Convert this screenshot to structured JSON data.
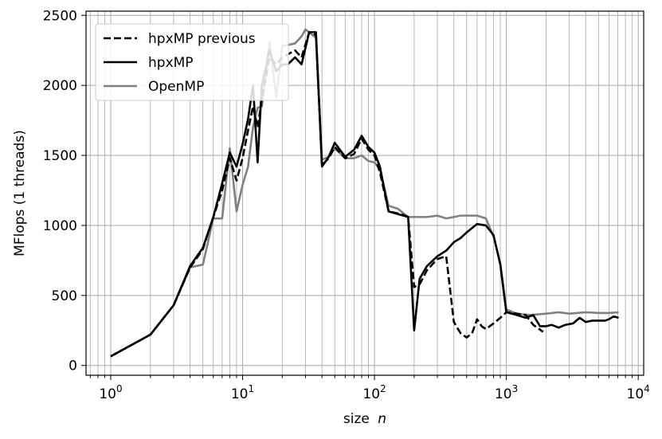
{
  "chart_data": {
    "type": "line",
    "xscale": "log",
    "xlim": [
      0.65,
      11000
    ],
    "ylim": [
      -70,
      2530
    ],
    "xlabel": "size",
    "xlabel_var": "n",
    "ylabel": "MFlops (1 threads)",
    "grid": true,
    "legend_position": "top-left",
    "x_major_ticks": [
      {
        "base": "10",
        "exp": "0",
        "value": 1
      },
      {
        "base": "10",
        "exp": "1",
        "value": 10
      },
      {
        "base": "10",
        "exp": "2",
        "value": 100
      },
      {
        "base": "10",
        "exp": "3",
        "value": 1000
      },
      {
        "base": "10",
        "exp": "4",
        "value": 10000
      }
    ],
    "y_ticks": [
      {
        "label": "0",
        "value": 0
      },
      {
        "label": "500",
        "value": 500
      },
      {
        "label": "1000",
        "value": 1000
      },
      {
        "label": "1500",
        "value": 1500
      },
      {
        "label": "2000",
        "value": 2000
      },
      {
        "label": "2500",
        "value": 2500
      }
    ],
    "series": [
      {
        "name": "hpxMP previous",
        "color": "#000000",
        "style": "dashed",
        "points": [
          [
            1,
            65
          ],
          [
            2,
            220
          ],
          [
            3,
            430
          ],
          [
            4,
            700
          ],
          [
            5,
            830
          ],
          [
            6,
            1060
          ],
          [
            7,
            1250
          ],
          [
            8,
            1480
          ],
          [
            9,
            1320
          ],
          [
            10,
            1480
          ],
          [
            11,
            1680
          ],
          [
            12,
            1850
          ],
          [
            13,
            1700
          ],
          [
            14,
            1900
          ],
          [
            16,
            2200
          ],
          [
            18,
            2150
          ],
          [
            20,
            2200
          ],
          [
            25,
            2250
          ],
          [
            28,
            2200
          ],
          [
            32,
            2380
          ],
          [
            36,
            2360
          ],
          [
            40,
            1430
          ],
          [
            45,
            1480
          ],
          [
            50,
            1560
          ],
          [
            60,
            1480
          ],
          [
            70,
            1510
          ],
          [
            80,
            1620
          ],
          [
            90,
            1540
          ],
          [
            100,
            1500
          ],
          [
            110,
            1380
          ],
          [
            128,
            1100
          ],
          [
            160,
            1080
          ],
          [
            180,
            1060
          ],
          [
            200,
            560
          ],
          [
            220,
            580
          ],
          [
            250,
            680
          ],
          [
            300,
            760
          ],
          [
            350,
            780
          ],
          [
            400,
            310
          ],
          [
            450,
            230
          ],
          [
            500,
            200
          ],
          [
            550,
            230
          ],
          [
            600,
            330
          ],
          [
            650,
            280
          ],
          [
            700,
            260
          ],
          [
            800,
            300
          ],
          [
            900,
            340
          ],
          [
            1000,
            380
          ],
          [
            1200,
            370
          ],
          [
            1400,
            360
          ],
          [
            1600,
            290
          ],
          [
            1900,
            240
          ]
        ]
      },
      {
        "name": "hpxMP",
        "color": "#000000",
        "style": "solid",
        "points": [
          [
            1,
            65
          ],
          [
            2,
            220
          ],
          [
            3,
            430
          ],
          [
            4,
            710
          ],
          [
            5,
            840
          ],
          [
            6,
            1060
          ],
          [
            7,
            1300
          ],
          [
            8,
            1520
          ],
          [
            9,
            1420
          ],
          [
            10,
            1580
          ],
          [
            11,
            1760
          ],
          [
            12,
            2000
          ],
          [
            13,
            1450
          ],
          [
            14,
            2000
          ],
          [
            16,
            2250
          ],
          [
            18,
            2100
          ],
          [
            20,
            2150
          ],
          [
            22,
            2150
          ],
          [
            25,
            2200
          ],
          [
            28,
            2150
          ],
          [
            32,
            2380
          ],
          [
            36,
            2380
          ],
          [
            40,
            1420
          ],
          [
            45,
            1490
          ],
          [
            50,
            1590
          ],
          [
            60,
            1490
          ],
          [
            70,
            1540
          ],
          [
            80,
            1640
          ],
          [
            90,
            1560
          ],
          [
            100,
            1520
          ],
          [
            110,
            1420
          ],
          [
            128,
            1100
          ],
          [
            180,
            1060
          ],
          [
            200,
            250
          ],
          [
            220,
            620
          ],
          [
            250,
            710
          ],
          [
            300,
            780
          ],
          [
            350,
            820
          ],
          [
            400,
            880
          ],
          [
            450,
            910
          ],
          [
            500,
            950
          ],
          [
            600,
            1010
          ],
          [
            700,
            1000
          ],
          [
            800,
            930
          ],
          [
            900,
            720
          ],
          [
            1000,
            380
          ],
          [
            1200,
            360
          ],
          [
            1400,
            340
          ],
          [
            1600,
            360
          ],
          [
            1800,
            280
          ],
          [
            2000,
            280
          ],
          [
            2200,
            290
          ],
          [
            2500,
            270
          ],
          [
            2800,
            290
          ],
          [
            3200,
            300
          ],
          [
            3600,
            340
          ],
          [
            4000,
            310
          ],
          [
            4500,
            320
          ],
          [
            5000,
            320
          ],
          [
            5600,
            320
          ],
          [
            6000,
            330
          ],
          [
            6500,
            350
          ],
          [
            7100,
            340
          ]
        ]
      },
      {
        "name": "OpenMP",
        "color": "#808080",
        "style": "solid",
        "points": [
          [
            1,
            65
          ],
          [
            2,
            220
          ],
          [
            3,
            430
          ],
          [
            4,
            700
          ],
          [
            5,
            720
          ],
          [
            6,
            1050
          ],
          [
            7,
            1050
          ],
          [
            8,
            1550
          ],
          [
            9,
            1100
          ],
          [
            10,
            1290
          ],
          [
            11,
            1420
          ],
          [
            12,
            1700
          ],
          [
            13,
            1840
          ],
          [
            14,
            1850
          ],
          [
            16,
            2310
          ],
          [
            18,
            1920
          ],
          [
            20,
            2280
          ],
          [
            25,
            2300
          ],
          [
            28,
            2350
          ],
          [
            30,
            2400
          ],
          [
            36,
            2340
          ],
          [
            40,
            1470
          ],
          [
            45,
            1490
          ],
          [
            50,
            1550
          ],
          [
            60,
            1480
          ],
          [
            70,
            1480
          ],
          [
            80,
            1500
          ],
          [
            90,
            1460
          ],
          [
            100,
            1450
          ],
          [
            110,
            1400
          ],
          [
            128,
            1140
          ],
          [
            150,
            1120
          ],
          [
            180,
            1060
          ],
          [
            200,
            1060
          ],
          [
            250,
            1060
          ],
          [
            300,
            1070
          ],
          [
            350,
            1050
          ],
          [
            400,
            1060
          ],
          [
            450,
            1070
          ],
          [
            500,
            1070
          ],
          [
            600,
            1070
          ],
          [
            700,
            1050
          ],
          [
            800,
            920
          ],
          [
            900,
            730
          ],
          [
            1000,
            400
          ],
          [
            1200,
            370
          ],
          [
            1500,
            360
          ],
          [
            2000,
            370
          ],
          [
            2500,
            380
          ],
          [
            3000,
            370
          ],
          [
            4000,
            380
          ],
          [
            5000,
            375
          ],
          [
            6000,
            375
          ],
          [
            7100,
            380
          ]
        ]
      }
    ]
  }
}
